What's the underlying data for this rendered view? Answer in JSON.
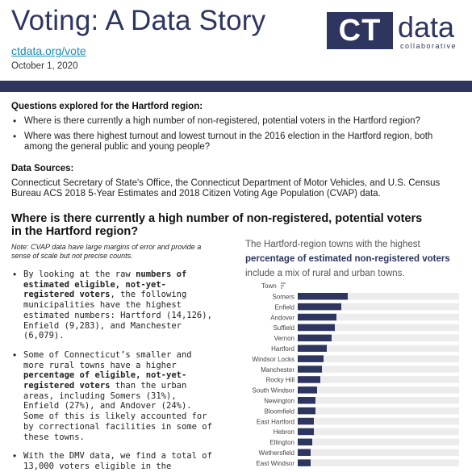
{
  "header": {
    "title": "Voting: A Data Story",
    "link": "ctdata.org/vote",
    "date": "October 1, 2020"
  },
  "logo": {
    "box": "CT",
    "word": "data",
    "sub": "collaborative"
  },
  "questions": {
    "heading": "Questions explored for the Hartford region:",
    "items": [
      "Where is there currently a high number of non-registered, potential voters in the Hartford region?",
      "Where was there highest turnout and lowest turnout in the 2016 election in the Hartford region, both among the general public and young people?"
    ]
  },
  "sources": {
    "heading": "Data Sources:",
    "text": "Connecticut Secretary of State's Office, the Connecticut Department of Motor Vehicles, and U.S. Census Bureau ACS 2018 5-Year Estimates and 2018 Citizen Voting Age Population (CVAP) data."
  },
  "section": {
    "heading": "Where is there currently a high number of non-registered, potential voters in the Hartford region?",
    "note": "Note: CVAP data have large margins of error and provide a sense of scale but not precise counts.",
    "bullet1": {
      "pre": "By looking at the raw ",
      "bold": "numbers of estimated eligible, not-yet-registered voters",
      "post": ", the following municipalities have the highest estimated numbers: Hartford (14,126), Enfield (9,283), and Manchester (6,079)."
    },
    "bullet2": {
      "pre": "Some of Connecticut’s smaller and more rural towns have a higher ",
      "bold": "percentage of eligible, not-yet-registered voters",
      "post": " than the urban areas, including Somers (31%), Enfield (27%), and Andover (24%). Some of this is likely accounted for by correctional facilities in some of these towns."
    },
    "bullet3": {
      "text": "With the DMV data, we find a total of 13,000 voters eligible in the"
    }
  },
  "chart_title": {
    "line1": "The Hartford-region towns with the highest",
    "highlight": "percentage of estimated non-registered voters",
    "line3": " include a mix of rural and urban towns."
  },
  "chart_data": {
    "type": "bar",
    "orientation": "horizontal",
    "axis_header": "Town",
    "categories": [
      "Somers",
      "Enfield",
      "Andover",
      "Suffield",
      "Vernon",
      "Hartford",
      "Windsor Locks",
      "Manchester",
      "Rocky Hill",
      "South Windsor",
      "Newington",
      "Bloomfield",
      "East Hartford",
      "Hebron",
      "Ellington",
      "Wethersfield",
      "East Windsor"
    ],
    "values": [
      31,
      27,
      24,
      23,
      21,
      18,
      16,
      15,
      14,
      12,
      11,
      11,
      10,
      10,
      9,
      8,
      8
    ],
    "bar_color": "#2e3660",
    "track_color": "#ececec",
    "xlim": [
      0,
      100
    ]
  }
}
